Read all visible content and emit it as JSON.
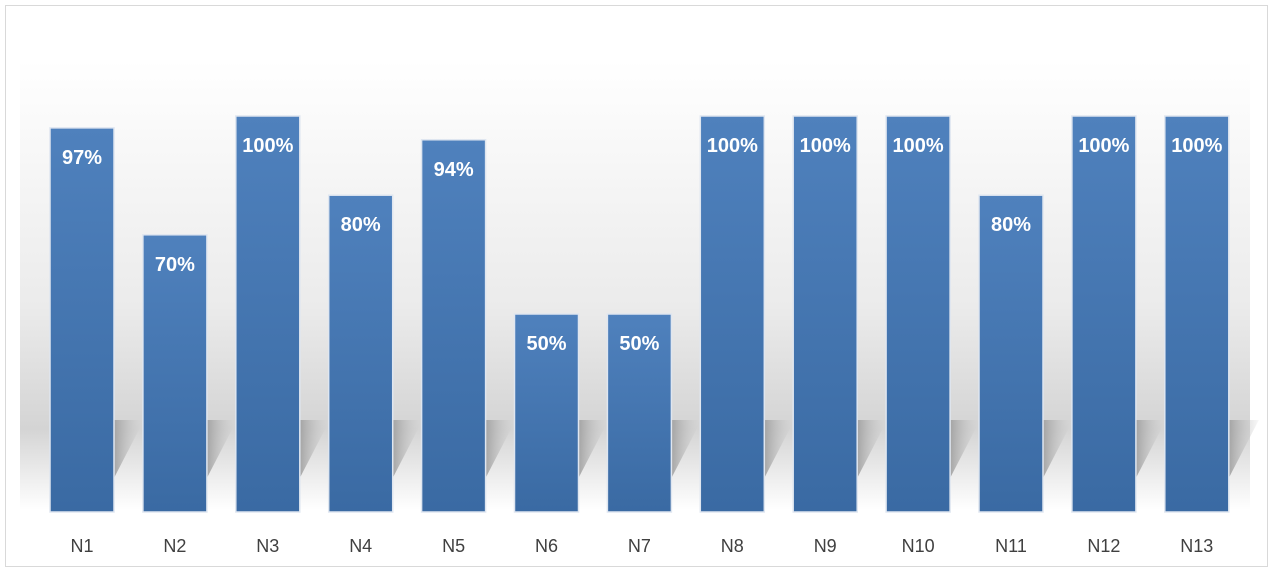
{
  "chart_data": {
    "type": "bar",
    "title": "",
    "xlabel": "",
    "ylabel": "",
    "categories": [
      "N1",
      "N2",
      "N3",
      "N4",
      "N5",
      "N6",
      "N7",
      "N8",
      "N9",
      "N10",
      "N11",
      "N12",
      "N13"
    ],
    "values": [
      97,
      70,
      100,
      80,
      94,
      50,
      50,
      100,
      100,
      100,
      80,
      100,
      100
    ],
    "data_labels": [
      "97%",
      "70%",
      "100%",
      "80%",
      "94%",
      "50%",
      "50%",
      "100%",
      "100%",
      "100%",
      "80%",
      "100%",
      "100%"
    ],
    "ylim": [
      0,
      100
    ],
    "value_unit": "%",
    "grid": false,
    "legend": "none",
    "colors": {
      "bar_top": "#4f81bd",
      "bar_bottom": "#3a6aa3",
      "bar_edge": "#dfe6f0",
      "data_label": "#ffffff",
      "tick_label": "#404040",
      "shadow": "#bdbdbd"
    }
  }
}
